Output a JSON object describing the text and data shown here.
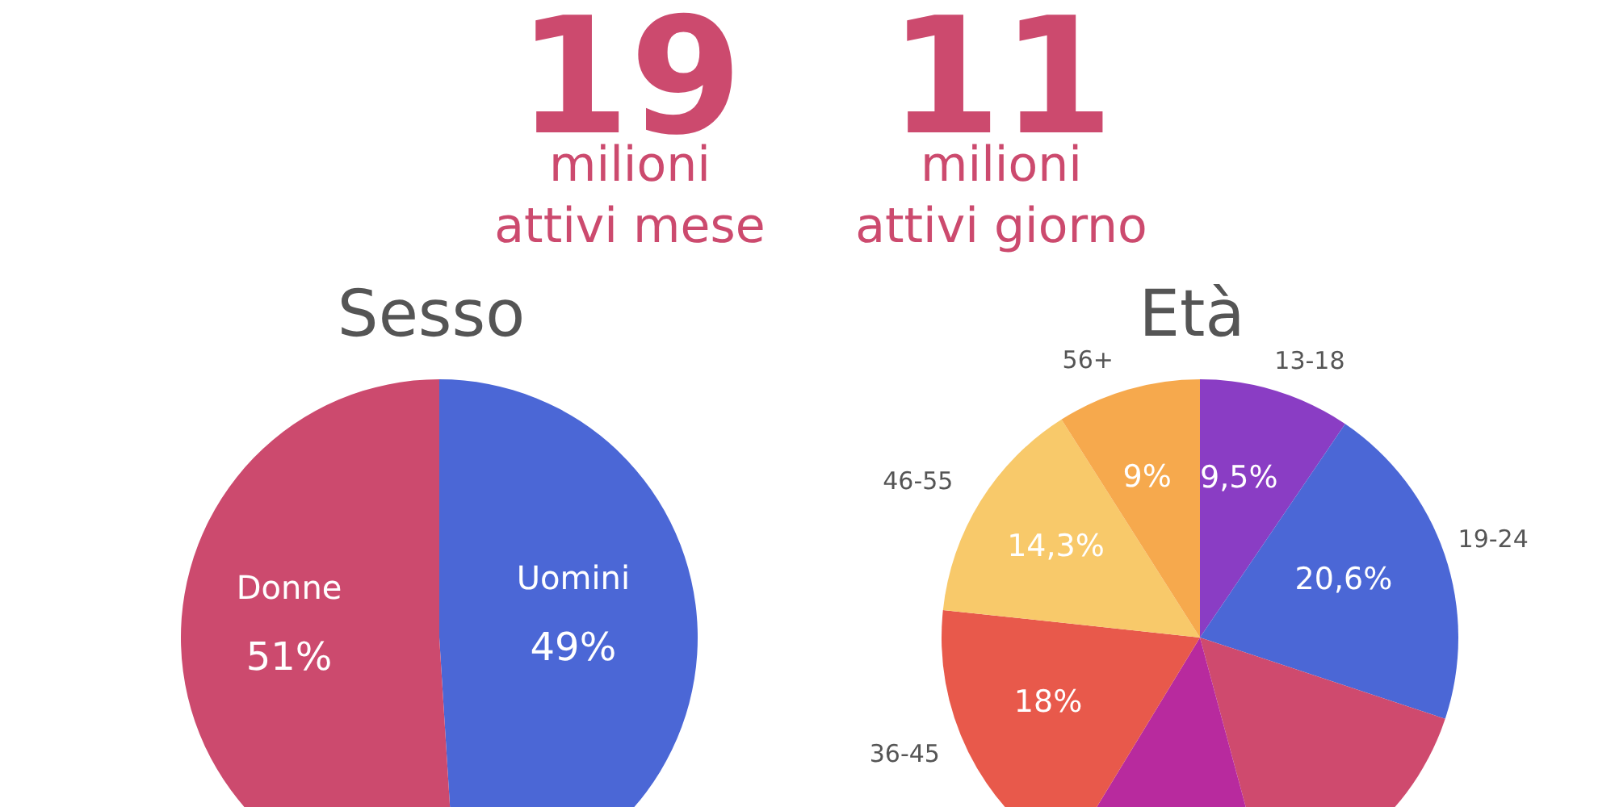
{
  "chart_data": [
    {
      "type": "other",
      "annotations": [
        "19",
        "milioni",
        "attivi mese",
        "11",
        "milioni",
        "attivi giorno"
      ]
    },
    {
      "type": "pie",
      "title": "Sesso",
      "categories": [
        "Uomini",
        "Donne"
      ],
      "values": [
        49,
        51
      ],
      "colors": [
        "#4b67d6",
        "#cc4a6e"
      ],
      "value_labels": [
        "49%",
        "51%"
      ]
    },
    {
      "type": "pie",
      "title": "Età",
      "categories": [
        "13-18",
        "19-24",
        null,
        null,
        "36-45",
        "46-55",
        "56+"
      ],
      "values": [
        9.5,
        20.6,
        15.7,
        12.9,
        18,
        14.3,
        9
      ],
      "colors": [
        "#8a3dc4",
        "#4b67d6",
        "#cf4a6e",
        "#b82a9e",
        "#e8594b",
        "#f8c96a",
        "#f6a94d"
      ],
      "value_labels": [
        "9,5%",
        "20,6%",
        null,
        null,
        "18%",
        "14,3%",
        "9%"
      ]
    }
  ]
}
